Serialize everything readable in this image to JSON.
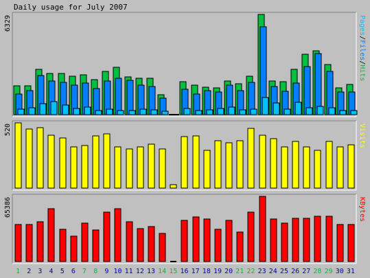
{
  "chart_data": [
    {
      "type": "bar",
      "title": "Daily usage for July 2007",
      "ymax_label": "6329",
      "ylim": [
        0,
        6329
      ],
      "categories": [
        "1",
        "2",
        "3",
        "4",
        "5",
        "6",
        "7",
        "8",
        "9",
        "10",
        "11",
        "12",
        "13",
        "14",
        "15",
        "16",
        "17",
        "18",
        "19",
        "20",
        "21",
        "22",
        "23",
        "24",
        "25",
        "26",
        "27",
        "28",
        "29",
        "30",
        "31"
      ],
      "weekend_days": [
        "1",
        "7",
        "8",
        "14",
        "15",
        "21",
        "22",
        "28",
        "29"
      ],
      "legend_parts": [
        "Pages",
        "/",
        "Files",
        "/",
        "Hits"
      ],
      "series": [
        {
          "name": "Hits",
          "values": [
            1820,
            1820,
            2850,
            2620,
            2620,
            2420,
            2530,
            2220,
            2750,
            2970,
            2400,
            2290,
            2290,
            1240,
            0,
            2090,
            1860,
            1750,
            1700,
            2110,
            1970,
            2440,
            6329,
            2130,
            2090,
            2840,
            3800,
            4030,
            3160,
            1690,
            1900
          ]
        },
        {
          "name": "Files",
          "values": [
            1280,
            1530,
            2470,
            2130,
            2020,
            1880,
            1990,
            1650,
            2120,
            2300,
            2180,
            1870,
            1770,
            1060,
            0,
            1610,
            1290,
            1530,
            1430,
            1850,
            1530,
            2020,
            5530,
            1760,
            1470,
            2000,
            3050,
            3860,
            2740,
            1410,
            1420
          ]
        },
        {
          "name": "Pages",
          "values": [
            350,
            430,
            680,
            810,
            600,
            400,
            470,
            280,
            350,
            270,
            270,
            330,
            310,
            230,
            0,
            400,
            280,
            320,
            410,
            490,
            300,
            360,
            1070,
            720,
            340,
            760,
            430,
            500,
            450,
            240,
            280
          ]
        }
      ]
    },
    {
      "type": "bar",
      "ymax_label": "520",
      "ylim": [
        0,
        520
      ],
      "series": [
        {
          "name": "Visits",
          "values": [
            520,
            470,
            480,
            420,
            400,
            330,
            340,
            415,
            430,
            330,
            310,
            330,
            350,
            310,
            25,
            410,
            415,
            300,
            380,
            360,
            380,
            475,
            420,
            395,
            330,
            370,
            330,
            300,
            370,
            330,
            345
          ]
        }
      ]
    },
    {
      "type": "bar",
      "ymax_label": "65386",
      "ylim": [
        0,
        65386
      ],
      "series": [
        {
          "name": "KBytes",
          "values": [
            37000,
            37500,
            40000,
            53000,
            32500,
            25500,
            38500,
            32000,
            49500,
            53000,
            40000,
            33000,
            35000,
            28000,
            0,
            41000,
            44500,
            43000,
            32500,
            41500,
            29500,
            49500,
            65386,
            43000,
            38500,
            43500,
            43500,
            45500,
            45500,
            37000,
            37500
          ]
        }
      ]
    }
  ],
  "colors": {
    "hits": "#00c040",
    "files": "#0080ff",
    "pages": "#00c0ff",
    "visits": "#ffff00",
    "kbytes": "#ff0000",
    "weekday_label": "#0000c0",
    "weekend_label": "#00c040",
    "panel_bg": "#c0c0c0"
  }
}
